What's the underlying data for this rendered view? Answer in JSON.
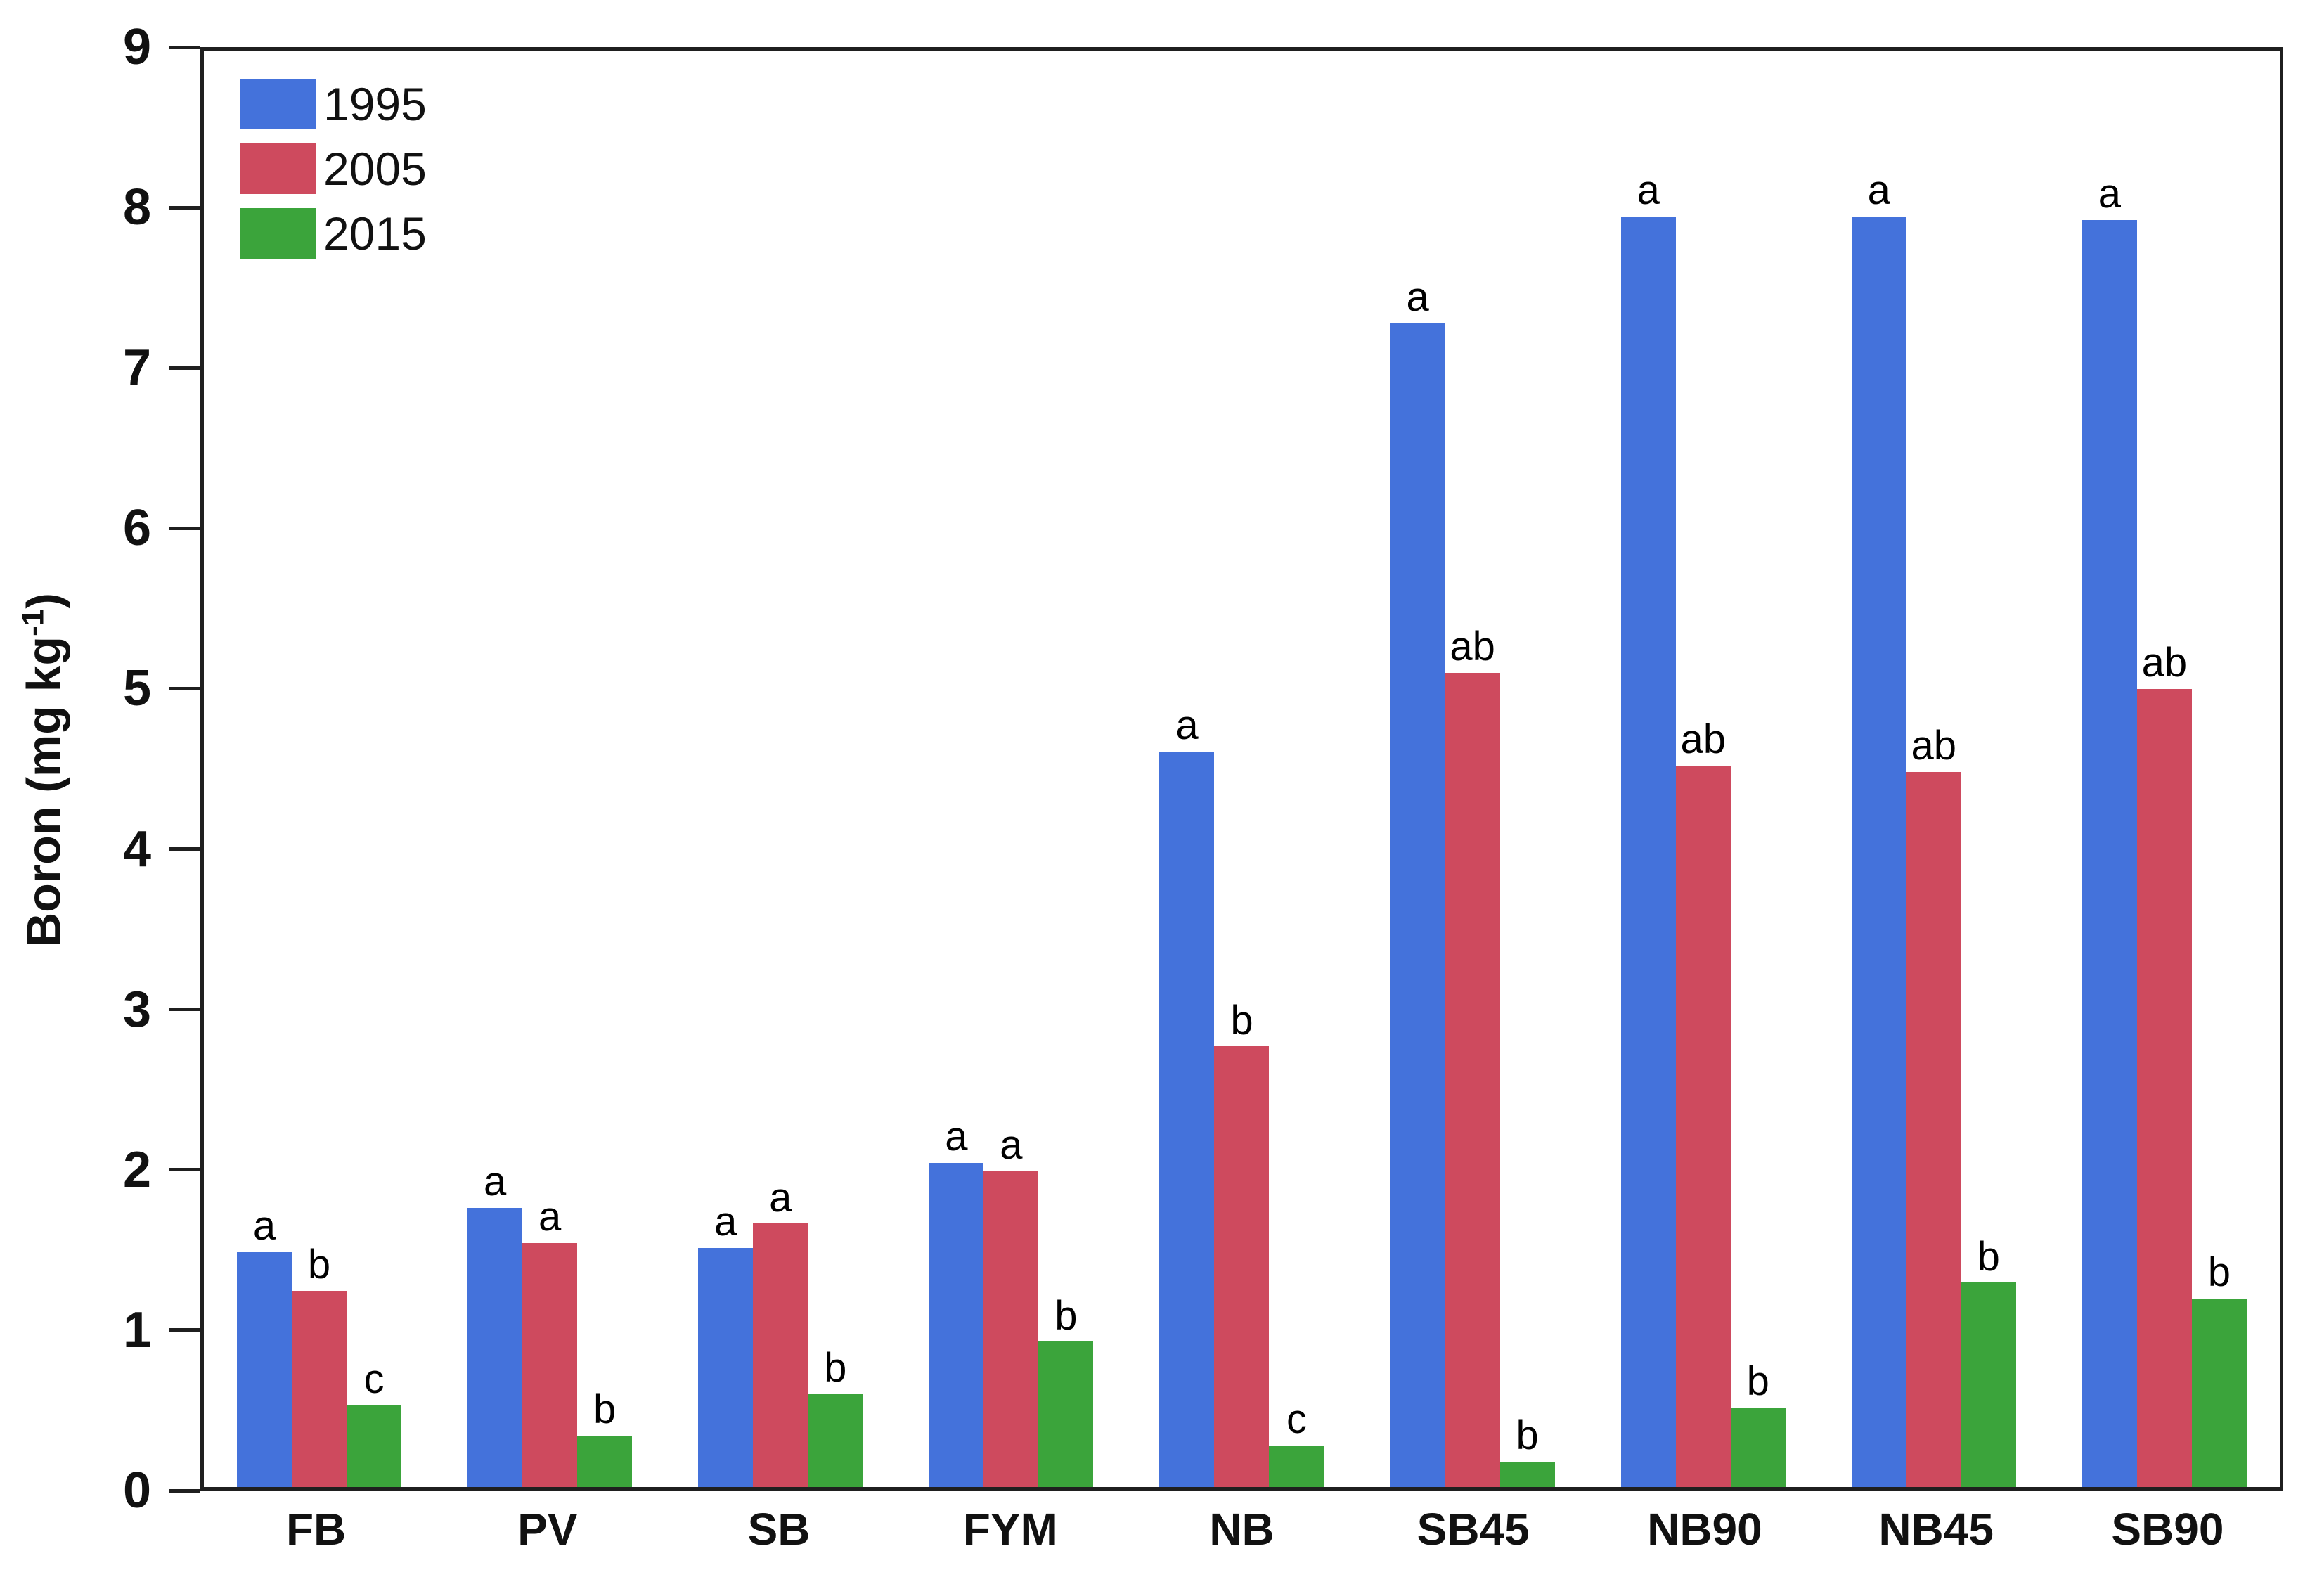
{
  "chart_data": {
    "type": "bar",
    "title": "",
    "ylabel": "Boron (mg kg-1)",
    "ylabel_main": "Boron (mg kg",
    "ylabel_sup": "-1",
    "ylabel_close": ")",
    "categories": [
      "FB",
      "PV",
      "SB",
      "FYM",
      "NB",
      "SB45",
      "NB90",
      "NB45",
      "SB90"
    ],
    "series": [
      {
        "name": "1995",
        "color": "#4472DB",
        "values": [
          1.47,
          1.75,
          1.5,
          2.03,
          4.61,
          7.29,
          7.96,
          7.96,
          7.94
        ],
        "letters": [
          "a",
          "a",
          "a",
          "a",
          "a",
          "a",
          "a",
          "a",
          "a"
        ]
      },
      {
        "name": "2005",
        "color": "#CE4A5E",
        "values": [
          1.23,
          1.53,
          1.65,
          1.98,
          2.76,
          5.1,
          4.52,
          4.48,
          5.0
        ],
        "letters": [
          "b",
          "a",
          "a",
          "a",
          "b",
          "ab",
          "ab",
          "ab",
          "ab"
        ]
      },
      {
        "name": "2015",
        "color": "#3BA43B",
        "values": [
          0.51,
          0.32,
          0.58,
          0.91,
          0.26,
          0.16,
          0.5,
          1.28,
          1.18
        ],
        "letters": [
          "c",
          "b",
          "b",
          "b",
          "c",
          "b",
          "b",
          "b",
          "b"
        ]
      }
    ],
    "ylim": [
      0,
      9
    ],
    "yticks": [
      0,
      1,
      2,
      3,
      4,
      5,
      6,
      7,
      8,
      9
    ],
    "legend_position": "top-left",
    "grid": false,
    "axis_color": "#1f1f1f"
  }
}
